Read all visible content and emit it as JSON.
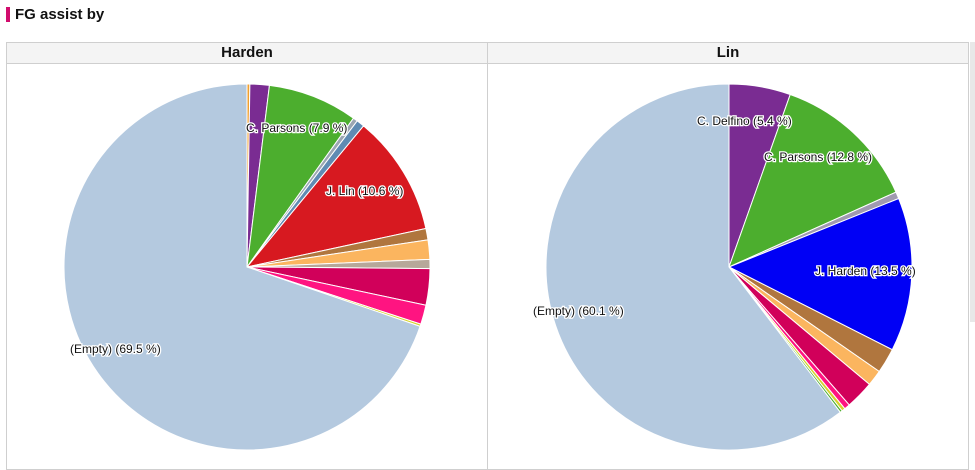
{
  "header": {
    "title": "FG assist by",
    "accent_color": "#d10d6d"
  },
  "chart_data": [
    {
      "type": "pie",
      "title": "Harden",
      "slices": [
        {
          "name": "",
          "percent": 0.25,
          "color": "#f0a030"
        },
        {
          "name": "",
          "percent": 1.7,
          "color": "#7a2c92"
        },
        {
          "name": "C. Parsons",
          "label": "C. Parsons (7.9 %)",
          "percent": 7.9,
          "color": "#4cae2e"
        },
        {
          "name": "",
          "percent": 0.4,
          "color": "#9ba6b2"
        },
        {
          "name": "",
          "percent": 0.7,
          "color": "#5f8bb3"
        },
        {
          "name": "J. Lin",
          "label": "J. Lin (10.6 %)",
          "percent": 10.6,
          "color": "#d71920"
        },
        {
          "name": "",
          "percent": 1.0,
          "color": "#b0763e"
        },
        {
          "name": "",
          "percent": 1.7,
          "color": "#fbb55f"
        },
        {
          "name": "",
          "percent": 0.8,
          "color": "#b7a89a"
        },
        {
          "name": "",
          "percent": 3.2,
          "color": "#d1005a"
        },
        {
          "name": "",
          "percent": 1.7,
          "color": "#ff1481"
        },
        {
          "name": "",
          "percent": 0.2,
          "color": "#d6d22c"
        },
        {
          "name": "(Empty)",
          "label": "(Empty) (69.5 %)",
          "percent": 69.5,
          "color": "#b4c9df"
        }
      ]
    },
    {
      "type": "pie",
      "title": "Lin",
      "slices": [
        {
          "name": "C. Delfino",
          "label": "C. Delfino (5.4 %)",
          "percent": 5.4,
          "color": "#7a2c92"
        },
        {
          "name": "C. Parsons",
          "label": "C. Parsons (12.8 %)",
          "percent": 12.8,
          "color": "#4cae2e"
        },
        {
          "name": "",
          "percent": 0.6,
          "color": "#a09ab0"
        },
        {
          "name": "J. Harden",
          "label": "J. Harden (13.5 %)",
          "percent": 13.5,
          "color": "#0000f5"
        },
        {
          "name": "",
          "percent": 2.2,
          "color": "#b0763e"
        },
        {
          "name": "",
          "percent": 1.4,
          "color": "#fbb55f"
        },
        {
          "name": "",
          "percent": 2.5,
          "color": "#d1005a"
        },
        {
          "name": "",
          "percent": 0.5,
          "color": "#ff1481"
        },
        {
          "name": "",
          "percent": 0.3,
          "color": "#d6d22c"
        },
        {
          "name": "",
          "percent": 0.2,
          "color": "#4cae2e"
        },
        {
          "name": "(Empty)",
          "label": "(Empty) (60.1 %)",
          "percent": 60.1,
          "color": "#b4c9df"
        }
      ]
    }
  ]
}
